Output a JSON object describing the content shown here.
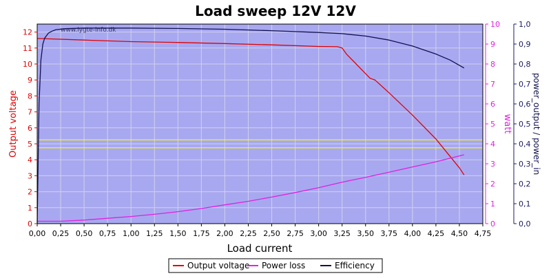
{
  "chart_data": {
    "type": "line",
    "title": "Load sweep 12V 12V",
    "xlabel": "Load current",
    "watermark": "www.lygte-info.dk",
    "x_ticks": [
      "0,00",
      "0,25",
      "0,50",
      "0,75",
      "1,00",
      "1,25",
      "1,50",
      "1,75",
      "2,00",
      "2,25",
      "2,50",
      "2,75",
      "3,00",
      "3,25",
      "3,50",
      "3,75",
      "4,00",
      "4,25",
      "4,50",
      "4,75"
    ],
    "xlim": [
      0,
      4.75
    ],
    "axes": {
      "left": {
        "label": "Output voltage",
        "ylim": [
          0,
          12.5
        ],
        "ticks": [
          "0",
          "1",
          "2",
          "3",
          "4",
          "5",
          "6",
          "7",
          "8",
          "9",
          "10",
          "11",
          "12"
        ],
        "color": "#e00000"
      },
      "right1": {
        "label": "watt",
        "ylim": [
          0,
          10
        ],
        "ticks": [
          "0",
          "1",
          "2",
          "3",
          "4",
          "5",
          "6",
          "7",
          "8",
          "9",
          "10"
        ],
        "color": "#e020e0"
      },
      "right2": {
        "label": "power_output / power_in",
        "ylim": [
          0,
          1.0
        ],
        "ticks": [
          "0,0",
          "0,1",
          "0,2",
          "0,3",
          "0,4",
          "0,5",
          "0,6",
          "0,7",
          "0,8",
          "0,9",
          "1,0"
        ],
        "color": "#1a1a60"
      }
    },
    "reference_lines": [
      {
        "axis": "left",
        "y": 5.25,
        "color": "#ffff00"
      },
      {
        "axis": "left",
        "y": 4.75,
        "color": "#ffff00"
      }
    ],
    "series": [
      {
        "name": "Output voltage",
        "axis": "left",
        "color": "#e00000",
        "x": [
          0.0,
          0.5,
          1.0,
          1.5,
          2.0,
          2.5,
          3.0,
          3.2,
          3.25,
          3.3,
          3.4,
          3.5,
          3.55,
          3.6,
          3.75,
          4.0,
          4.25,
          4.5,
          4.55
        ],
        "y": [
          11.6,
          11.5,
          11.4,
          11.35,
          11.28,
          11.2,
          11.1,
          11.08,
          11.0,
          10.6,
          10.0,
          9.4,
          9.1,
          9.0,
          8.2,
          6.8,
          5.3,
          3.5,
          3.05
        ]
      },
      {
        "name": "Power loss",
        "axis": "right1",
        "color": "#e020e0",
        "x": [
          0.0,
          0.25,
          0.5,
          0.75,
          1.0,
          1.25,
          1.5,
          1.75,
          2.0,
          2.25,
          2.5,
          2.75,
          3.0,
          3.25,
          3.5,
          3.75,
          4.0,
          4.25,
          4.55
        ],
        "y": [
          0.12,
          0.12,
          0.18,
          0.27,
          0.36,
          0.47,
          0.6,
          0.76,
          0.94,
          1.12,
          1.33,
          1.56,
          1.8,
          2.08,
          2.32,
          2.58,
          2.84,
          3.1,
          3.45
        ]
      },
      {
        "name": "Efficiency",
        "axis": "right2",
        "color": "#101050",
        "x": [
          0.0,
          0.02,
          0.04,
          0.06,
          0.08,
          0.12,
          0.16,
          0.2,
          0.3,
          0.5,
          0.75,
          1.0,
          1.5,
          2.0,
          2.5,
          3.0,
          3.25,
          3.5,
          3.75,
          4.0,
          4.25,
          4.4,
          4.55
        ],
        "y": [
          0.0,
          0.6,
          0.82,
          0.9,
          0.93,
          0.955,
          0.965,
          0.972,
          0.977,
          0.98,
          0.98,
          0.98,
          0.978,
          0.974,
          0.967,
          0.958,
          0.952,
          0.94,
          0.92,
          0.89,
          0.85,
          0.82,
          0.78
        ]
      }
    ],
    "legend": {
      "placement": "bottom-center",
      "items": [
        "Output voltage",
        "Power loss",
        "Efficiency"
      ]
    },
    "grid": true,
    "plot_background": "#a8a8f0"
  }
}
